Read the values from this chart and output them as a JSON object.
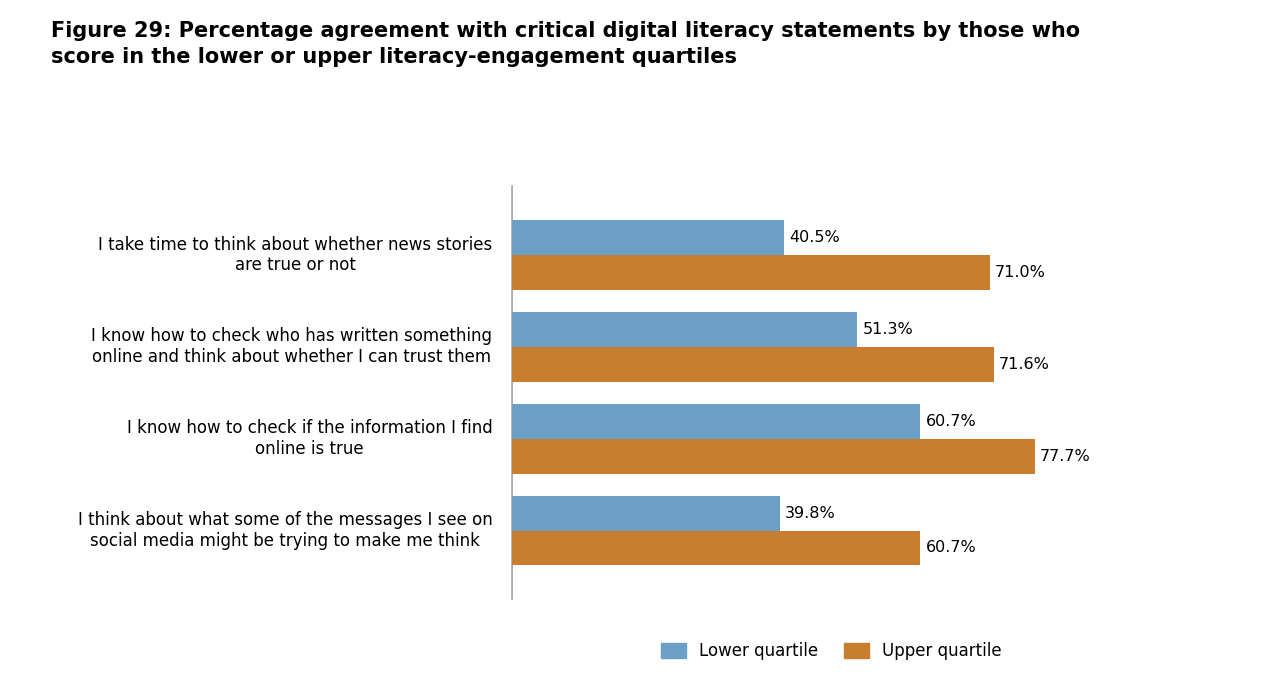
{
  "title": "Figure 29: Percentage agreement with critical digital literacy statements by those who\nscore in the lower or upper literacy-engagement quartiles",
  "categories": [
    "I think about what some of the messages I see on\nsocial media might be trying to make me think",
    "I know how to check if the information I find\nonline is true",
    "I know how to check who has written something\nonline and think about whether I can trust them",
    "I take time to think about whether news stories\nare true or not"
  ],
  "lower_quartile": [
    39.8,
    60.7,
    51.3,
    40.5
  ],
  "upper_quartile": [
    60.7,
    77.7,
    71.6,
    71.0
  ],
  "lower_color": "#6CA0C8",
  "upper_color": "#C87D2F",
  "background_color": "#FFFFFF",
  "bar_height": 0.38,
  "xlim": [
    0,
    95
  ],
  "legend_labels": [
    "Lower quartile",
    "Upper quartile"
  ],
  "title_fontsize": 15,
  "label_fontsize": 12,
  "value_fontsize": 11.5
}
